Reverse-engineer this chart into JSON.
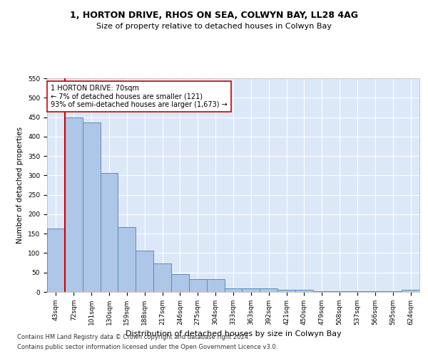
{
  "title": "1, HORTON DRIVE, RHOS ON SEA, COLWYN BAY, LL28 4AG",
  "subtitle": "Size of property relative to detached houses in Colwyn Bay",
  "xlabel": "Distribution of detached houses by size in Colwyn Bay",
  "ylabel": "Number of detached properties",
  "categories": [
    "43sqm",
    "72sqm",
    "101sqm",
    "130sqm",
    "159sqm",
    "188sqm",
    "217sqm",
    "246sqm",
    "275sqm",
    "304sqm",
    "333sqm",
    "363sqm",
    "392sqm",
    "421sqm",
    "450sqm",
    "479sqm",
    "508sqm",
    "537sqm",
    "566sqm",
    "595sqm",
    "624sqm"
  ],
  "values": [
    163,
    450,
    436,
    307,
    167,
    106,
    74,
    45,
    33,
    33,
    10,
    10,
    9,
    5,
    5,
    2,
    2,
    2,
    2,
    2,
    5
  ],
  "bar_color": "#aec6e8",
  "bar_edge_color": "#5b8db8",
  "vline_color": "#cc0000",
  "annotation_text": "1 HORTON DRIVE: 70sqm\n← 7% of detached houses are smaller (121)\n93% of semi-detached houses are larger (1,673) →",
  "annotation_box_facecolor": "#ffffff",
  "annotation_box_edgecolor": "#cc0000",
  "ylim": [
    0,
    550
  ],
  "yticks": [
    0,
    50,
    100,
    150,
    200,
    250,
    300,
    350,
    400,
    450,
    500,
    550
  ],
  "bg_color": "#dce8f8",
  "grid_color": "#ffffff",
  "footer_line1": "Contains HM Land Registry data © Crown copyright and database right 2024.",
  "footer_line2": "Contains public sector information licensed under the Open Government Licence v3.0.",
  "title_fontsize": 9,
  "subtitle_fontsize": 8,
  "xlabel_fontsize": 8,
  "ylabel_fontsize": 7.5,
  "tick_fontsize": 6.5,
  "annotation_fontsize": 7,
  "footer_fontsize": 6
}
